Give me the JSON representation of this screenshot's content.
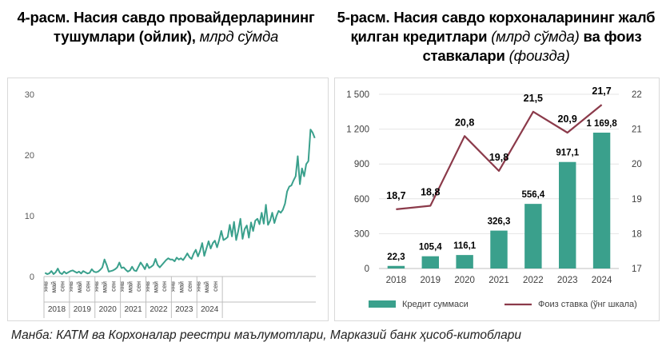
{
  "figure1": {
    "title_main": "4-расм. Насия савдо провайдерларининг тушумлари (ойлик),",
    "title_unit": "млрд сўмда",
    "chart_data": {
      "type": "line",
      "color": "#3aa08c",
      "ylim": [
        0,
        30
      ],
      "yticks": [
        "0",
        "10",
        "20",
        "30"
      ],
      "month_labels": [
        "янв",
        "май",
        "сен"
      ],
      "years": [
        "2018",
        "2019",
        "2020",
        "2021",
        "2022",
        "2023",
        "2024"
      ],
      "x_start": "2018-01",
      "values": [
        0.6,
        0.4,
        0.5,
        0.9,
        0.4,
        0.7,
        1.3,
        0.6,
        0.4,
        0.8,
        0.5,
        0.7,
        0.9,
        1.0,
        0.8,
        0.6,
        0.8,
        0.5,
        0.9,
        0.7,
        0.5,
        0.6,
        1.2,
        0.8,
        0.7,
        0.8,
        1.1,
        1.5,
        2.8,
        1.9,
        0.8,
        0.9,
        1.0,
        1.2,
        1.5,
        2.3,
        1.4,
        1.5,
        1.1,
        0.8,
        1.0,
        1.6,
        1.0,
        0.9,
        1.6,
        2.3,
        1.8,
        1.2,
        2.1,
        1.4,
        1.6,
        1.9,
        2.9,
        1.9,
        1.5,
        1.9,
        2.3,
        2.7,
        3.0,
        2.8,
        2.8,
        2.5,
        3.1,
        2.8,
        3.0,
        2.7,
        3.2,
        3.8,
        3.2,
        2.9,
        3.8,
        4.4,
        3.3,
        4.2,
        5.5,
        3.4,
        4.6,
        5.8,
        4.6,
        5.5,
        5.9,
        4.8,
        6.0,
        7.5,
        6.0,
        6.2,
        6.5,
        8.5,
        6.6,
        9.0,
        6.0,
        7.5,
        9.5,
        6.2,
        7.8,
        8.4,
        6.4,
        8.9,
        7.5,
        9.2,
        9.5,
        8.6,
        10.5,
        8.7,
        11.8,
        8.5,
        9.2,
        10.5,
        8.8,
        10.0,
        10.8,
        10.5,
        11.0,
        12.0,
        14.0,
        14.8,
        15.0,
        15.8,
        16.5,
        19.8,
        15.2,
        17.8,
        16.5,
        18.5,
        19.0,
        24.2,
        23.7,
        22.8
      ]
    }
  },
  "figure2": {
    "title_main_1": "5-расм. Насия савдо корхоналарининг жалб қилган кредитлари",
    "title_unit": "(млрд сўмда)",
    "title_main_2": "ва фоиз ставкалари",
    "title_pct": "(фоизда)",
    "chart_data": {
      "type": "bar+line",
      "categories": [
        "2018",
        "2019",
        "2020",
        "2021",
        "2022",
        "2023",
        "2024"
      ],
      "series": [
        {
          "name": "Кредит суммаси",
          "type": "bar",
          "axis": "left",
          "color": "#3aa08c",
          "values": [
            22.3,
            105.4,
            116.1,
            326.3,
            556.4,
            917.1,
            1169.8
          ],
          "labels": [
            "22,3",
            "105,4",
            "116,1",
            "326,3",
            "556,4",
            "917,1",
            "1 169,8"
          ]
        },
        {
          "name": "Фоиз ставка (ўнг шкала)",
          "type": "line",
          "axis": "right",
          "color": "#8b3a4a",
          "values": [
            18.7,
            18.8,
            20.8,
            19.8,
            21.5,
            20.9,
            21.7
          ],
          "labels": [
            "18,7",
            "18,8",
            "20,8",
            "19,8",
            "21,5",
            "20,9",
            "21,7"
          ]
        }
      ],
      "ylim_left": [
        0,
        1500
      ],
      "yticks_left": [
        "0",
        "300",
        "600",
        "900",
        "1 200",
        "1 500"
      ],
      "ylim_right": [
        17,
        22
      ],
      "yticks_right": [
        "17",
        "18",
        "19",
        "20",
        "21",
        "22"
      ]
    }
  },
  "source_text": "Манба: КАТМ ва Корхоналар реестри маълумотлари, Марказий банк ҳисоб-китоблари"
}
